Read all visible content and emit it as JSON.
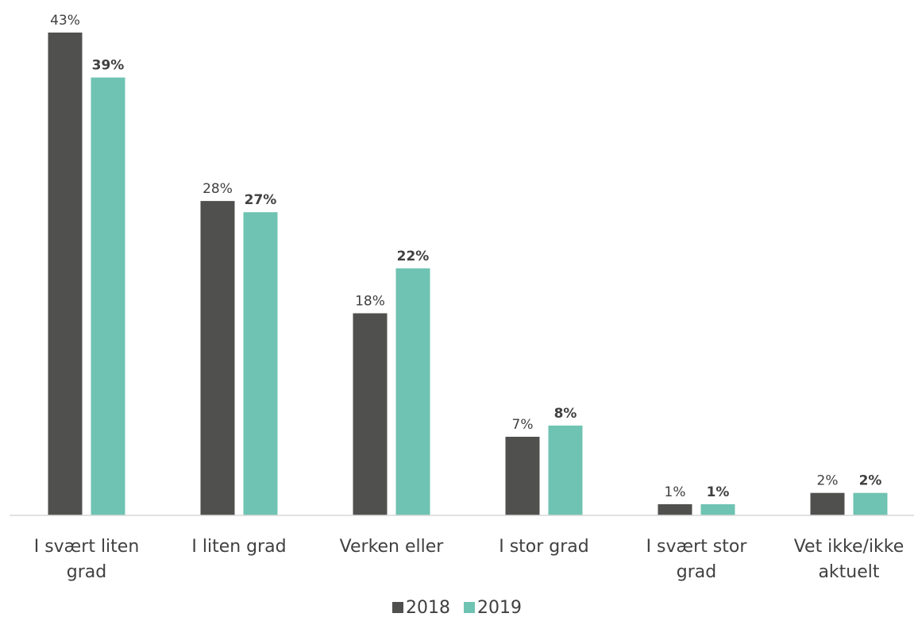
{
  "chart_data": {
    "type": "bar",
    "categories": [
      [
        "I svært liten",
        "grad"
      ],
      [
        "I liten grad"
      ],
      [
        "Verken eller"
      ],
      [
        "I stor grad"
      ],
      [
        "I svært stor",
        "grad"
      ],
      [
        "Vet ikke/ikke",
        "aktuelt"
      ]
    ],
    "series": [
      {
        "name": "2018",
        "color": "#50514f",
        "values": [
          43,
          28,
          18,
          7,
          1,
          2
        ],
        "labels": [
          "43%",
          "28%",
          "18%",
          "7%",
          "1%",
          "2%"
        ]
      },
      {
        "name": "2019",
        "color": "#6fc3b2",
        "values": [
          39,
          27,
          22,
          8,
          1,
          2
        ],
        "labels": [
          "39%",
          "27%",
          "22%",
          "8%",
          "1%",
          "2%"
        ]
      }
    ],
    "ylim": [
      0,
      43
    ],
    "grid": false,
    "legend_position": "bottom"
  }
}
